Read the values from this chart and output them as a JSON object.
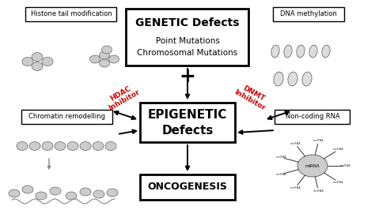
{
  "bg_color": "#ffffff",
  "top_left_label": "Histone tail modification",
  "bottom_left_label": "Chromatin remodelling",
  "top_right_label": "DNA methylation",
  "bottom_right_label": "Non-coding RNA",
  "genetic_title": "GENETIC Defects",
  "genetic_sub1": "Point Mutations",
  "genetic_sub2": "Chromosomal Mutations",
  "epigenetic_line1": "EPIGENETIC",
  "epigenetic_line2": "Defects",
  "oncogenesis": "ONCOGENESIS",
  "hdac_label": "HDAC\nInhibitor",
  "dnmt_label": "DNMT\nInhibitor",
  "plus_symbol": "+",
  "inhibitor_color": "#cc0000",
  "box_facecolor": "#ffffff",
  "box_edgecolor": "#000000",
  "arrow_color": "#000000",
  "gray_arrow": "#888888"
}
